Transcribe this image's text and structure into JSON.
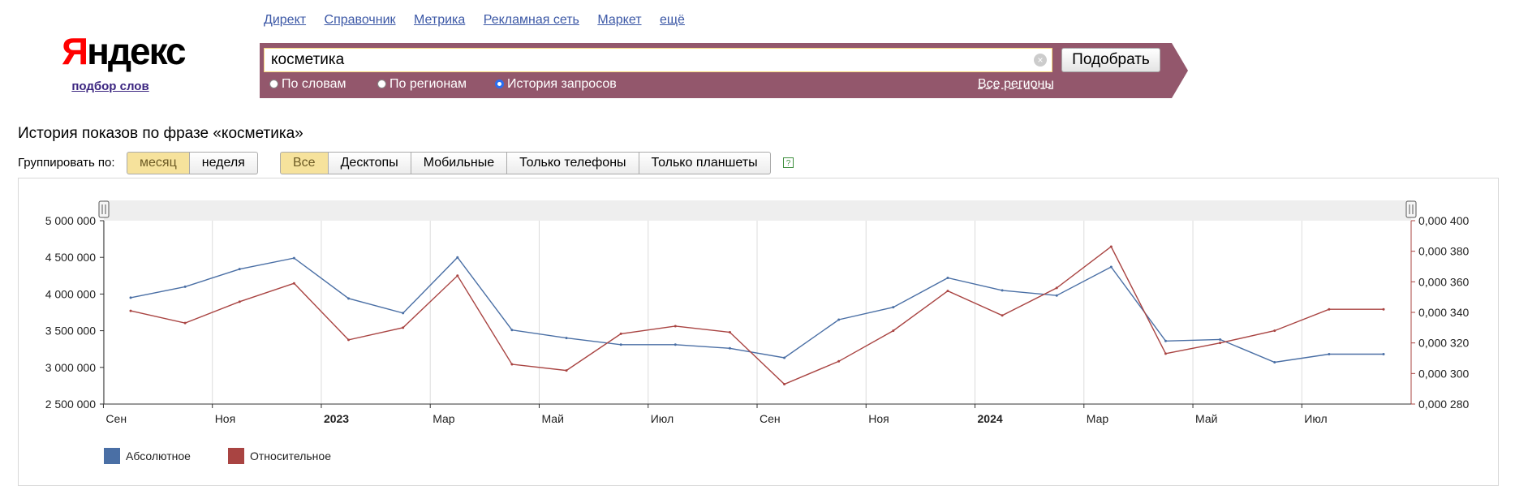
{
  "logo": {
    "text": "Яндекс",
    "subtitle": "подбор слов"
  },
  "nav": [
    "Директ",
    "Справочник",
    "Метрика",
    "Рекламная сеть",
    "Маркет",
    "ещё"
  ],
  "search": {
    "value": "косметика",
    "button_label": "Подобрать",
    "radios": [
      {
        "label": "По словам",
        "checked": false
      },
      {
        "label": "По регионам",
        "checked": false
      },
      {
        "label": "История запросов",
        "checked": true
      }
    ],
    "regions_link": "Все регионы"
  },
  "page_title": "История показов по фразе «косметика»",
  "group_by": {
    "label": "Группировать по:",
    "options": [
      "месяц",
      "неделя"
    ],
    "active": "месяц"
  },
  "device_filter": {
    "options": [
      "Все",
      "Десктопы",
      "Мобильные",
      "Только телефоны",
      "Только планшеты"
    ],
    "active": "Все"
  },
  "help_icon": "help-icon",
  "colors": {
    "absolute": "#4a6fa5",
    "relative": "#a94442",
    "bar_bg": "#93576c"
  },
  "chart_data": {
    "type": "line",
    "x": [
      "2022-09",
      "2022-10",
      "2022-11",
      "2022-12",
      "2023-01",
      "2023-02",
      "2023-03",
      "2023-04",
      "2023-05",
      "2023-06",
      "2023-07",
      "2023-08",
      "2023-09",
      "2023-10",
      "2023-11",
      "2023-12",
      "2024-01",
      "2024-02",
      "2024-03",
      "2024-04",
      "2024-05",
      "2024-06",
      "2024-07",
      "2024-08"
    ],
    "x_tick_labels": [
      "Сен",
      "Ноя",
      "2023",
      "Мар",
      "Май",
      "Июл",
      "Сен",
      "Ноя",
      "2024",
      "Мар",
      "Май",
      "Июл"
    ],
    "series": [
      {
        "name": "Абсолютное",
        "axis": "left",
        "color": "#4a6fa5",
        "values": [
          3950000,
          4100000,
          4340000,
          4490000,
          3940000,
          3740000,
          4500000,
          3510000,
          3400000,
          3310000,
          3310000,
          3260000,
          3130000,
          3650000,
          3820000,
          4220000,
          4050000,
          3980000,
          4370000,
          3360000,
          3380000,
          3070000,
          3180000,
          3180000
        ]
      },
      {
        "name": "Относительное",
        "axis": "right",
        "color": "#a94442",
        "values": [
          0.000341,
          0.000333,
          0.000347,
          0.000359,
          0.000322,
          0.00033,
          0.000364,
          0.000306,
          0.000302,
          0.000326,
          0.000331,
          0.000327,
          0.000293,
          0.000308,
          0.000328,
          0.000354,
          0.000338,
          0.000356,
          0.000383,
          0.000313,
          0.00032,
          0.000328,
          0.000342,
          0.000342
        ]
      }
    ],
    "y_left": {
      "min": 2500000,
      "max": 5000000,
      "ticks": [
        "5 000 000",
        "4 500 000",
        "4 000 000",
        "3 500 000",
        "3 000 000",
        "2 500 000"
      ]
    },
    "y_right": {
      "min": 0.00028,
      "max": 0.0004,
      "ticks": [
        "0,000 400",
        "0,000 380",
        "0,000 360",
        "0,000 340",
        "0,000 320",
        "0,000 300",
        "0,000 280"
      ]
    },
    "grid": true,
    "legend_position": "bottom-left"
  }
}
